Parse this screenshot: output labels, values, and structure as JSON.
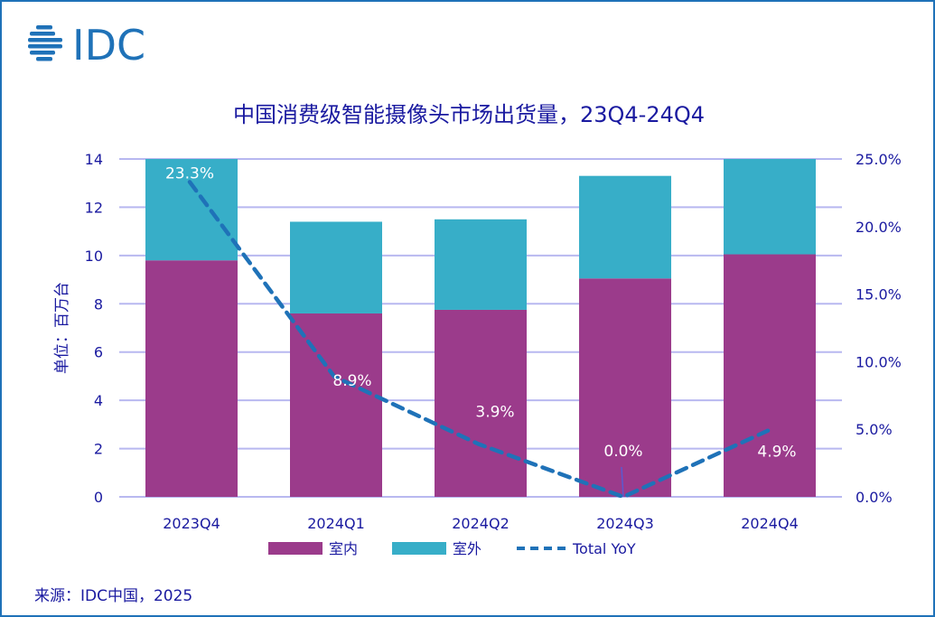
{
  "logo": {
    "text": "IDC",
    "color": "#1f72b8"
  },
  "chart_data": {
    "type": "bar",
    "stacked": true,
    "title": "中国消费级智能摄像头市场出货量，23Q4-24Q4",
    "ylabel": "单位：百万台",
    "ylim": [
      0,
      14
    ],
    "yticks": [
      "0",
      "2",
      "4",
      "6",
      "8",
      "10",
      "12",
      "14"
    ],
    "y2lim": [
      0,
      25
    ],
    "y2ticks": [
      "0.0%",
      "5.0%",
      "10.0%",
      "15.0%",
      "20.0%",
      "25.0%"
    ],
    "categories": [
      "2023Q4",
      "2024Q1",
      "2024Q2",
      "2024Q3",
      "2024Q4"
    ],
    "series": [
      {
        "name": "室内",
        "type": "bar",
        "color": "#9b3b8b",
        "values": [
          9.8,
          7.6,
          7.75,
          9.05,
          10.05
        ]
      },
      {
        "name": "室外",
        "type": "bar",
        "color": "#37aec8",
        "values": [
          4.2,
          3.8,
          3.75,
          4.25,
          3.95
        ]
      },
      {
        "name": "Total YoY",
        "type": "line",
        "axis": "right",
        "style": "dashed",
        "color": "#1f72b8",
        "values": [
          23.3,
          8.9,
          3.9,
          0.0,
          4.9
        ],
        "labels": [
          "23.3%",
          "8.9%",
          "3.9%",
          "0.0%",
          "4.9%"
        ]
      }
    ],
    "grid": true,
    "legend": "bottom"
  },
  "source": "来源：IDC中国，2025"
}
